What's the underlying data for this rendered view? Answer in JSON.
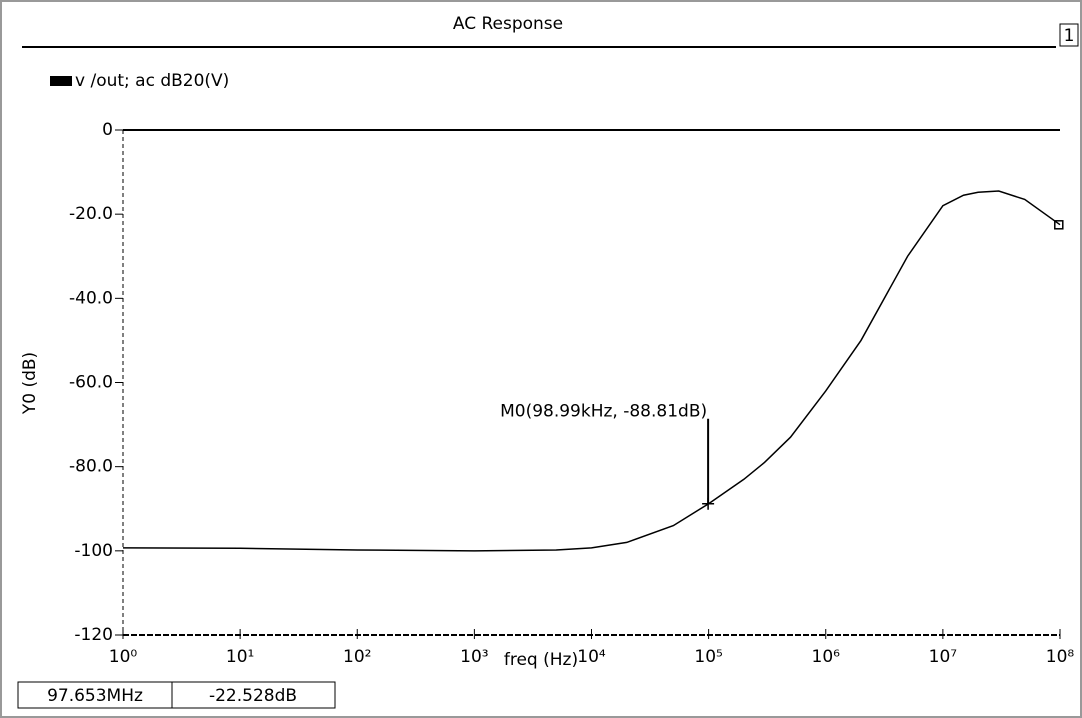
{
  "title": "AC Response",
  "panel_number": "1",
  "chart_data": {
    "type": "line",
    "xlabel": "freq (Hz)",
    "ylabel": "Y0 (dB)",
    "xscale": "log",
    "x": [
      1,
      10,
      100,
      1000,
      5000,
      10000,
      20000,
      50000,
      100000,
      200000,
      300000,
      500000,
      1000000,
      2000000,
      5000000,
      10000000,
      15000000,
      20000000,
      30000000,
      50000000,
      100000000
    ],
    "series": [
      {
        "name": "v /out; ac dB20(V)",
        "color": "#000000",
        "values": [
          -99.3,
          -99.4,
          -99.8,
          -100,
          -99.8,
          -99.3,
          -98,
          -94,
          -88.8,
          -83,
          -79,
          -73,
          -62,
          -50,
          -30,
          -18,
          -15.5,
          -14.8,
          -14.5,
          -16.5,
          -22.5
        ]
      }
    ],
    "xlim": [
      1,
      100000000
    ],
    "xticks": [
      {
        "value": 1,
        "label": "10⁰"
      },
      {
        "value": 10,
        "label": "10¹"
      },
      {
        "value": 100,
        "label": "10²"
      },
      {
        "value": 1000,
        "label": "10³"
      },
      {
        "value": 10000,
        "label": "10⁴"
      },
      {
        "value": 100000,
        "label": "10⁵"
      },
      {
        "value": 1000000,
        "label": "10⁶"
      },
      {
        "value": 10000000,
        "label": "10⁷"
      },
      {
        "value": 100000000,
        "label": "10⁸"
      }
    ],
    "ylim": [
      -120,
      0
    ],
    "yticks": [
      0,
      {
        "value": -20,
        "label": "-20.0"
      },
      {
        "value": -40,
        "label": "-40.0"
      },
      {
        "value": -60,
        "label": "-60.0"
      },
      {
        "value": -80,
        "label": "-80.0"
      },
      -100,
      -120
    ],
    "marker": {
      "label": "M0(98.99kHz, -88.81dB)",
      "x": 98990,
      "y": -88.81
    },
    "cursor": {
      "x": 97653000,
      "y": -22.528,
      "x_label": "97.653MHz",
      "y_label": "-22.528dB"
    }
  }
}
